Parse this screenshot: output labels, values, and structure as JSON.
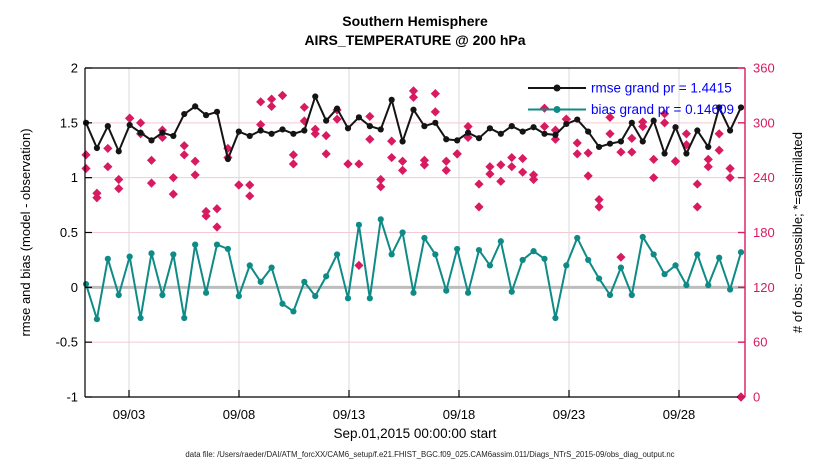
{
  "title": {
    "line1": "Southern Hemisphere",
    "line2": "AIRS_TEMPERATURE @ 200 hPa"
  },
  "legend": {
    "rmse_label": "rmse grand pr = 1.4415",
    "bias_label": "bias grand pr = 0.14609",
    "text_color": "#0000ff"
  },
  "caption": "data file: /Users/raeder/DAI/ATM_forcXX/CAM6_setup/f.e21.FHIST_BGC.f09_025.CAM6assim.011/Diags_NTrS_2015-09/obs_diag_output.nc",
  "colors": {
    "rmse": "#141414",
    "bias": "#0f8b87",
    "obs": "#d81b60",
    "right_axis": "#d81b60",
    "grid_vertical": "#d8d8d8",
    "grid_horizontal": "#f5c9d6",
    "zero_line": "#bdbdbd",
    "legend_text": "#0000ff"
  },
  "chart_data": {
    "type": "line",
    "title": "Southern Hemisphere",
    "subtitle": "AIRS_TEMPERATURE @ 200 hPa",
    "xlabel": "Sep.01,2015 00:00:00 start",
    "ylabel_left": "rmse and bias (model - observation)",
    "ylabel_right": "# of obs: o=possible; *=assimilated",
    "ylim_left": [
      -1,
      2
    ],
    "ylim_right": [
      0,
      360
    ],
    "grid": true,
    "legend_position": "top-right-inside",
    "x_tick_labels": [
      "09/03",
      "09/08",
      "09/13",
      "09/18",
      "09/23",
      "09/28"
    ],
    "yticks_left": [
      "2",
      "1.5",
      "1",
      "0.5",
      "0",
      "-0.5",
      "-1"
    ],
    "yticks_right": [
      "360",
      "300",
      "240",
      "180",
      "120",
      "60",
      "0"
    ],
    "x_unit": "12-hour bins starting Sep.01,2015 00:00:00",
    "series": [
      {
        "name": "rmse",
        "axis": "left",
        "marker": "circle",
        "grand_value": 1.4415,
        "values": [
          1.5,
          1.27,
          1.47,
          1.24,
          1.48,
          1.41,
          1.34,
          1.41,
          1.38,
          1.58,
          1.65,
          1.57,
          1.6,
          1.17,
          1.42,
          1.38,
          1.43,
          1.4,
          1.44,
          1.4,
          1.43,
          1.74,
          1.52,
          1.63,
          1.45,
          1.55,
          1.47,
          1.44,
          1.71,
          1.33,
          1.62,
          1.47,
          1.5,
          1.35,
          1.34,
          1.41,
          1.36,
          1.45,
          1.4,
          1.47,
          1.42,
          1.46,
          1.4,
          1.39,
          1.49,
          1.53,
          1.42,
          1.28,
          1.31,
          1.33,
          1.5,
          1.33,
          1.52,
          1.22,
          1.46,
          1.22,
          1.43,
          1.28,
          1.64,
          1.43,
          1.64
        ]
      },
      {
        "name": "bias",
        "axis": "left",
        "marker": "circle",
        "grand_value": 0.14609,
        "values": [
          0.03,
          -0.29,
          0.26,
          -0.07,
          0.28,
          -0.28,
          0.31,
          -0.07,
          0.3,
          -0.28,
          0.39,
          -0.05,
          0.39,
          0.35,
          -0.08,
          0.2,
          0.05,
          0.18,
          -0.15,
          -0.22,
          0.05,
          -0.08,
          0.1,
          0.3,
          -0.1,
          0.57,
          -0.1,
          0.62,
          0.3,
          0.5,
          -0.05,
          0.45,
          0.3,
          -0.03,
          0.35,
          -0.05,
          0.34,
          0.2,
          0.42,
          -0.04,
          0.25,
          0.33,
          0.26,
          -0.28,
          0.2,
          0.45,
          0.25,
          0.08,
          -0.07,
          0.18,
          -0.07,
          0.46,
          0.3,
          0.12,
          0.2,
          0.02,
          0.3,
          0.02,
          0.27,
          -0.02,
          0.32
        ]
      },
      {
        "name": "obs_possible",
        "axis": "right",
        "marker": "diamond",
        "values": [
          265,
          223,
          272,
          238,
          305,
          300,
          259,
          292,
          240,
          275,
          258,
          203,
          206,
          272,
          232,
          232,
          323,
          326,
          330,
          265,
          317,
          293,
          286,
          314,
          255,
          255,
          307,
          238,
          280,
          258,
          335,
          259,
          332,
          258,
          266,
          296,
          233,
          252,
          254,
          262,
          261,
          243,
          316,
          292,
          304,
          278,
          267,
          216,
          306,
          268,
          283,
          301,
          260,
          310,
          258,
          288,
          233,
          260,
          288,
          250,
          0
        ]
      },
      {
        "name": "obs_assimilated",
        "axis": "right",
        "marker": "diamond",
        "values": [
          250,
          218,
          252,
          228,
          305,
          288,
          234,
          284,
          222,
          265,
          243,
          198,
          186,
          262,
          232,
          220,
          298,
          318,
          330,
          255,
          302,
          288,
          266,
          304,
          255,
          144,
          282,
          230,
          262,
          248,
          328,
          254,
          312,
          248,
          266,
          284,
          208,
          244,
          236,
          252,
          246,
          238,
          296,
          282,
          304,
          266,
          242,
          208,
          288,
          153,
          268,
          296,
          240,
          300,
          258,
          276,
          208,
          252,
          270,
          240,
          0
        ]
      }
    ]
  }
}
